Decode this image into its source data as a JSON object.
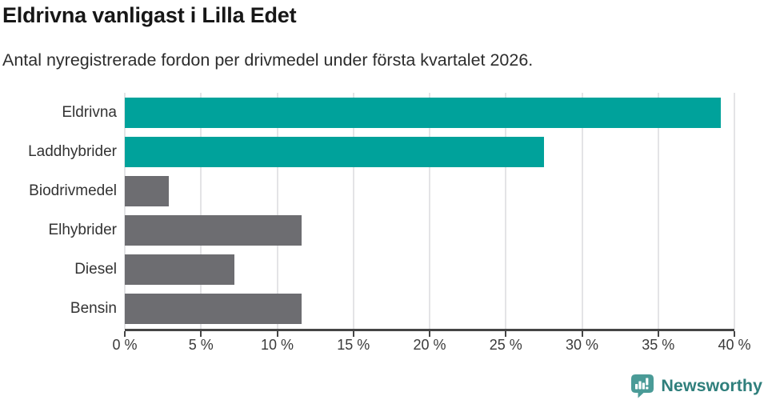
{
  "header": {
    "title": "Eldrivna vanligast i Lilla Edet",
    "subtitle": "Antal nyregistrerade fordon per drivmedel under första kvartalet 2026."
  },
  "chart_data": {
    "type": "bar",
    "orientation": "horizontal",
    "title": "Eldrivna vanligast i Lilla Edet",
    "subtitle": "Antal nyregistrerade fordon per drivmedel under första kvartalet 2026.",
    "categories": [
      "Eldrivna",
      "Laddhybrider",
      "Biodrivmedel",
      "Elhybrider",
      "Diesel",
      "Bensin"
    ],
    "values": [
      39.1,
      27.5,
      2.9,
      11.6,
      7.2,
      11.6
    ],
    "unit": "%",
    "bar_colors": [
      "#00a29b",
      "#00a29b",
      "#6d6d71",
      "#6d6d71",
      "#6d6d71",
      "#6d6d71"
    ],
    "xlabel": "",
    "ylabel": "",
    "xlim": [
      0,
      40
    ],
    "x_ticks": [
      0,
      5,
      10,
      15,
      20,
      25,
      30,
      35,
      40
    ],
    "x_tick_labels": [
      "0 %",
      "5 %",
      "10 %",
      "15 %",
      "20 %",
      "25 %",
      "30 %",
      "35 %",
      "40 %"
    ],
    "grid": "vertical-only",
    "legend": "none"
  },
  "colors": {
    "bar_teal": "#00a29b",
    "bar_gray": "#6d6d71",
    "gridline": "#e4e4e6",
    "axis": "#454545",
    "title_text": "#171717",
    "body_text": "#333333",
    "brand_teal": "#2f7f7c",
    "background": "#ffffff"
  },
  "branding": {
    "logo_text": "Newsworthy",
    "logo_icon": "newsworthy-speech-bubble-bar-chart-icon"
  }
}
